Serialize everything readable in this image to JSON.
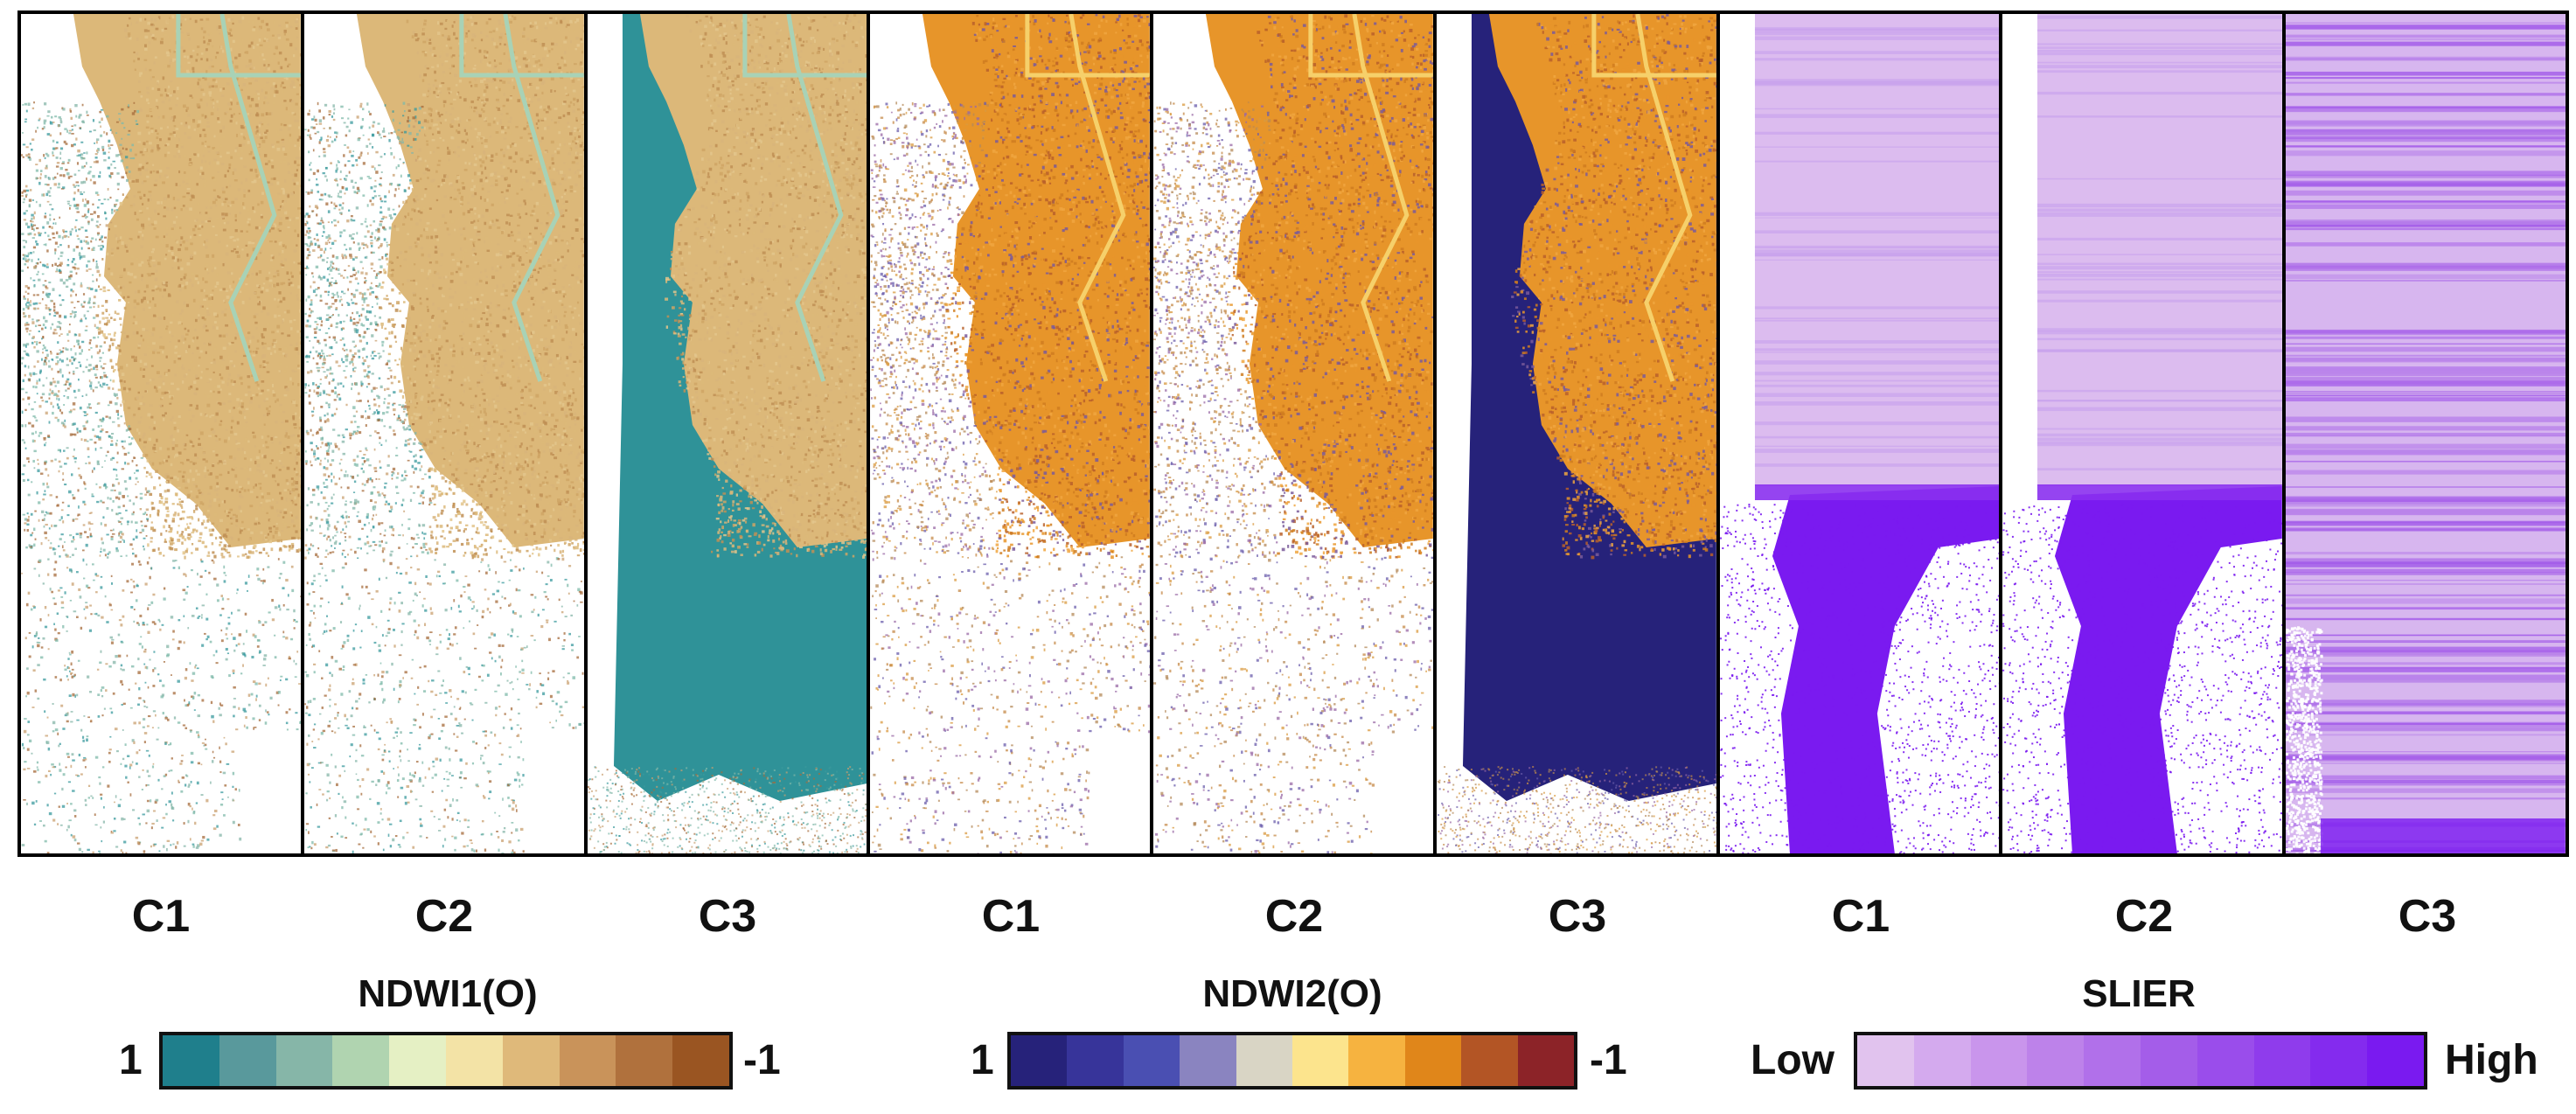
{
  "panels": [
    {
      "label": "C1",
      "style": "ndwi1",
      "water": "scatter"
    },
    {
      "label": "C2",
      "style": "ndwi1",
      "water": "scatter"
    },
    {
      "label": "C3",
      "style": "ndwi1",
      "water": "solid"
    },
    {
      "label": "C1",
      "style": "ndwi2",
      "water": "scatter"
    },
    {
      "label": "C2",
      "style": "ndwi2",
      "water": "scatter"
    },
    {
      "label": "C3",
      "style": "ndwi2",
      "water": "solid"
    },
    {
      "label": "C1",
      "style": "slier",
      "water": "bright"
    },
    {
      "label": "C2",
      "style": "slier",
      "water": "bright"
    },
    {
      "label": "C3",
      "style": "slier",
      "water": "banded"
    }
  ],
  "colorbars": [
    {
      "title": "NDWI1(O)",
      "left_label": "1",
      "right_label": "-1",
      "colors": [
        "#1f7f8c",
        "#59999c",
        "#86b6a8",
        "#b0d4b0",
        "#e5f0c4",
        "#f3e3a6",
        "#dfb97a",
        "#c9935a",
        "#b0713d",
        "#9a5522"
      ]
    },
    {
      "title": "NDWI2(O)",
      "left_label": "1",
      "right_label": "-1",
      "colors": [
        "#26227a",
        "#37349a",
        "#4a4fb2",
        "#8a84c0",
        "#d9d5c5",
        "#fce48d",
        "#f6b340",
        "#e0861a",
        "#b35525",
        "#8c2328"
      ]
    },
    {
      "title": "SLIER",
      "left_label": "Low",
      "right_label": "High",
      "colors": [
        "#e1c3ee",
        "#d4aaee",
        "#c995ec",
        "#bd82ea",
        "#b170ea",
        "#a45de9",
        "#9a4deb",
        "#8f3cec",
        "#842bee",
        "#7a1af0"
      ]
    }
  ]
}
